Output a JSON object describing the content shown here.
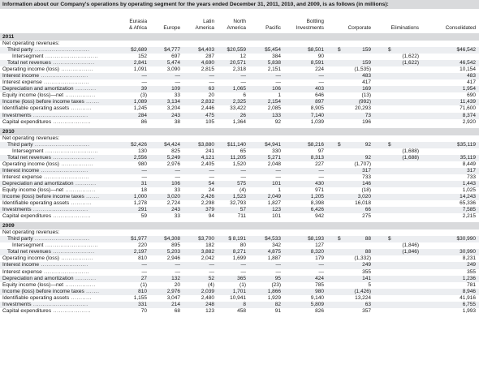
{
  "caption": "Information about our Company's operations by operating segment for the years ended December 31, 2011, 2010, and 2009, is as follows (in millions):",
  "columns": [
    "Eurasia\n& Africa",
    "Europe",
    "Latin\nAmerica",
    "North\nAmerica",
    "Pacific",
    "Bottling\nInvestments",
    "Corporate",
    "Eliminations",
    "Consolidated"
  ],
  "column_lines": [
    [
      "Eurasia",
      "& Africa"
    ],
    [
      "",
      "Europe"
    ],
    [
      "Latin",
      "America"
    ],
    [
      "North",
      "America"
    ],
    [
      "",
      "Pacific"
    ],
    [
      "Bottling",
      "Investments"
    ],
    [
      "",
      "Corporate"
    ],
    [
      "",
      "Eliminations"
    ],
    [
      "",
      "Consolidated"
    ]
  ],
  "years": [
    {
      "year": "2011",
      "rows": [
        {
          "label": "Net operating revenues:",
          "indent": 0,
          "dots": false,
          "values": [
            "",
            "",
            "",
            "",
            "",
            "",
            "",
            "",
            ""
          ]
        },
        {
          "label": "Third party",
          "indent": 1,
          "dots": true,
          "dollar": true,
          "values": [
            "$2,689",
            "$4,777",
            "$4,403",
            "$20,559",
            "$5,454",
            "$8,501",
            "159",
            "",
            "$46,542"
          ]
        },
        {
          "label": "Intersegment",
          "indent": 2,
          "dots": true,
          "values": [
            "152",
            "697",
            "287",
            "12",
            "384",
            "90",
            "",
            "(1,622)",
            ""
          ]
        },
        {
          "label": "Total net revenues",
          "indent": 1,
          "dots": true,
          "values": [
            "2,841",
            "5,474",
            "4,690",
            "20,571",
            "5,838",
            "8,591",
            "159",
            "(1,622)",
            "46,542"
          ]
        },
        {
          "label": "Operating income (loss)",
          "indent": 0,
          "dots": true,
          "values": [
            "1,091",
            "3,090",
            "2,815",
            "2,318",
            "2,151",
            "224",
            "(1,535)",
            "",
            "10,154"
          ]
        },
        {
          "label": "Interest income",
          "indent": 0,
          "dots": true,
          "values": [
            "—",
            "—",
            "—",
            "—",
            "—",
            "—",
            "483",
            "",
            "483"
          ]
        },
        {
          "label": "Interest expense",
          "indent": 0,
          "dots": true,
          "values": [
            "—",
            "—",
            "—",
            "—",
            "—",
            "—",
            "417",
            "",
            "417"
          ]
        },
        {
          "label": "Depreciation and amortization",
          "indent": 0,
          "dots": true,
          "values": [
            "39",
            "109",
            "63",
            "1,065",
            "106",
            "403",
            "169",
            "",
            "1,954"
          ]
        },
        {
          "label": "Equity income (loss)—net",
          "indent": 0,
          "dots": true,
          "values": [
            "(3)",
            "33",
            "20",
            "6",
            "1",
            "646",
            "(13)",
            "",
            "690"
          ]
        },
        {
          "label": "Income (loss) before income taxes",
          "indent": 0,
          "dots": true,
          "values": [
            "1,089",
            "3,134",
            "2,832",
            "2,325",
            "2,154",
            "897",
            "(992)",
            "",
            "11,439"
          ]
        },
        {
          "label": "Identifiable operating assets",
          "indent": 0,
          "dots": true,
          "values": [
            "1,245",
            "3,204",
            "2,446",
            "33,422",
            "2,085",
            "8,905",
            "20,293",
            "",
            "71,600"
          ]
        },
        {
          "label": "Investments",
          "indent": 0,
          "dots": true,
          "values": [
            "284",
            "243",
            "475",
            "26",
            "133",
            "7,140",
            "73",
            "",
            "8,374"
          ]
        },
        {
          "label": "Capital expenditures",
          "indent": 0,
          "dots": true,
          "values": [
            "86",
            "38",
            "105",
            "1,364",
            "92",
            "1,039",
            "196",
            "",
            "2,920"
          ]
        }
      ]
    },
    {
      "year": "2010",
      "rows": [
        {
          "label": "Net operating revenues:",
          "indent": 0,
          "dots": false,
          "values": [
            "",
            "",
            "",
            "",
            "",
            "",
            "",
            "",
            ""
          ]
        },
        {
          "label": "Third party",
          "indent": 1,
          "dots": true,
          "dollar": true,
          "values": [
            "$2,426",
            "$4,424",
            "$3,880",
            "$11,140",
            "$4,941",
            "$8,216",
            "92",
            "",
            "$35,119"
          ]
        },
        {
          "label": "Intersegment",
          "indent": 2,
          "dots": true,
          "values": [
            "130",
            "825",
            "241",
            "65",
            "330",
            "97",
            "",
            "(1,688)",
            ""
          ]
        },
        {
          "label": "Total net revenues",
          "indent": 1,
          "dots": true,
          "values": [
            "2,556",
            "5,249",
            "4,121",
            "11,205",
            "5,271",
            "8,313",
            "92",
            "(1,688)",
            "35,119"
          ]
        },
        {
          "label": "Operating income (loss)",
          "indent": 0,
          "dots": true,
          "values": [
            "980",
            "2,976",
            "2,405",
            "1,520",
            "2,048",
            "227",
            "(1,707)",
            "",
            "8,449"
          ]
        },
        {
          "label": "Interest income",
          "indent": 0,
          "dots": true,
          "values": [
            "—",
            "—",
            "—",
            "—",
            "—",
            "—",
            "317",
            "",
            "317"
          ]
        },
        {
          "label": "Interest expense",
          "indent": 0,
          "dots": true,
          "values": [
            "—",
            "—",
            "—",
            "—",
            "—",
            "—",
            "733",
            "",
            "733"
          ]
        },
        {
          "label": "Depreciation and amortization",
          "indent": 0,
          "dots": true,
          "values": [
            "31",
            "106",
            "54",
            "575",
            "101",
            "430",
            "146",
            "",
            "1,443"
          ]
        },
        {
          "label": "Equity income (loss)—net",
          "indent": 0,
          "dots": true,
          "values": [
            "18",
            "33",
            "24",
            "(4)",
            "1",
            "971",
            "(18)",
            "",
            "1,025"
          ]
        },
        {
          "label": "Income (loss) before income taxes",
          "indent": 0,
          "dots": true,
          "values": [
            "1,000",
            "3,020",
            "2,426",
            "1,523",
            "2,049",
            "1,205",
            "3,020",
            "",
            "14,243"
          ]
        },
        {
          "label": "Identifiable operating assets",
          "indent": 0,
          "dots": true,
          "values": [
            "1,278",
            "2,724",
            "2,298",
            "32,793",
            "1,827",
            "8,398",
            "16,018",
            "",
            "65,336"
          ]
        },
        {
          "label": "Investments",
          "indent": 0,
          "dots": true,
          "values": [
            "291",
            "243",
            "379",
            "57",
            "123",
            "6,426",
            "66",
            "",
            "7,585"
          ]
        },
        {
          "label": "Capital expenditures",
          "indent": 0,
          "dots": true,
          "values": [
            "59",
            "33",
            "94",
            "711",
            "101",
            "942",
            "275",
            "",
            "2,215"
          ]
        }
      ]
    },
    {
      "year": "2009",
      "rows": [
        {
          "label": "Net operating revenues:",
          "indent": 0,
          "dots": false,
          "values": [
            "",
            "",
            "",
            "",
            "",
            "",
            "",
            "",
            ""
          ]
        },
        {
          "label": "Third party",
          "indent": 1,
          "dots": true,
          "dollar": true,
          "values": [
            "$1,977",
            "$4,308",
            "$3,700",
            "$ 8,191",
            "$4,533",
            "$8,193",
            "88",
            "",
            "$30,990"
          ]
        },
        {
          "label": "Intersegment",
          "indent": 2,
          "dots": true,
          "values": [
            "220",
            "895",
            "182",
            "80",
            "342",
            "127",
            "",
            "(1,846)",
            ""
          ]
        },
        {
          "label": "Total net revenues",
          "indent": 1,
          "dots": true,
          "values": [
            "2,197",
            "5,203",
            "3,882",
            "8,271",
            "4,875",
            "8,320",
            "88",
            "(1,846)",
            "30,990"
          ]
        },
        {
          "label": "Operating income (loss)",
          "indent": 0,
          "dots": true,
          "values": [
            "810",
            "2,946",
            "2,042",
            "1,699",
            "1,887",
            "179",
            "(1,332)",
            "",
            "8,231"
          ]
        },
        {
          "label": "Interest income",
          "indent": 0,
          "dots": true,
          "values": [
            "—",
            "—",
            "—",
            "—",
            "—",
            "—",
            "249",
            "",
            "249"
          ]
        },
        {
          "label": "Interest expense",
          "indent": 0,
          "dots": true,
          "values": [
            "—",
            "—",
            "—",
            "—",
            "—",
            "—",
            "355",
            "",
            "355"
          ]
        },
        {
          "label": "Depreciation and amortization",
          "indent": 0,
          "dots": true,
          "values": [
            "27",
            "132",
            "52",
            "365",
            "95",
            "424",
            "141",
            "",
            "1,236"
          ]
        },
        {
          "label": "Equity income (loss)—net",
          "indent": 0,
          "dots": true,
          "values": [
            "(1)",
            "20",
            "(4)",
            "(1)",
            "(23)",
            "785",
            "5",
            "",
            "781"
          ]
        },
        {
          "label": "Income (loss) before income taxes",
          "indent": 0,
          "dots": true,
          "values": [
            "810",
            "2,976",
            "2,039",
            "1,701",
            "1,866",
            "980",
            "(1,426)",
            "",
            "8,946"
          ]
        },
        {
          "label": "Identifiable operating assets",
          "indent": 0,
          "dots": true,
          "values": [
            "1,155",
            "3,047",
            "2,480",
            "10,941",
            "1,929",
            "9,140",
            "13,224",
            "",
            "41,916"
          ]
        },
        {
          "label": "Investments",
          "indent": 0,
          "dots": true,
          "values": [
            "331",
            "214",
            "248",
            "8",
            "82",
            "5,809",
            "63",
            "",
            "6,755"
          ]
        },
        {
          "label": "Capital expenditures",
          "indent": 0,
          "dots": true,
          "values": [
            "70",
            "68",
            "123",
            "458",
            "91",
            "826",
            "357",
            "",
            "1,993"
          ]
        }
      ]
    }
  ]
}
